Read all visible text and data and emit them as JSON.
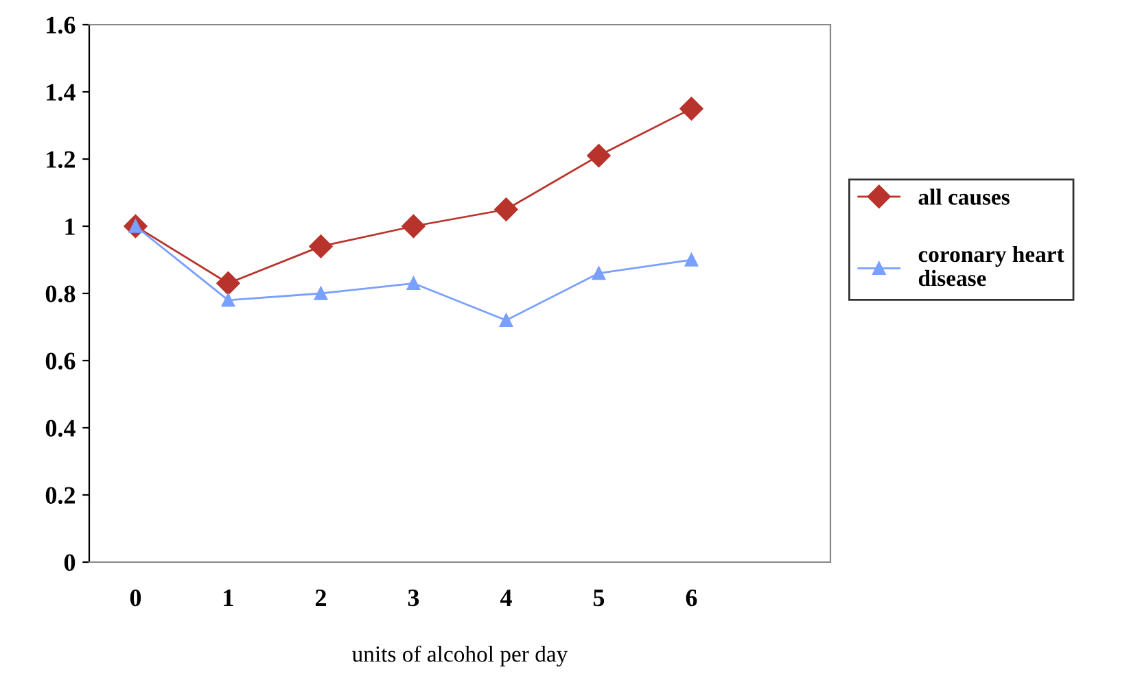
{
  "chart_data": {
    "type": "line",
    "xlabel": "units of alcohol per day",
    "categories": [
      "0",
      "1",
      "2",
      "3",
      "4",
      "5",
      "6",
      null
    ],
    "series": [
      {
        "name": "all causes",
        "color": "#b8332b",
        "marker": "diamond",
        "values": [
          1.0,
          0.83,
          0.94,
          1.0,
          1.05,
          1.21,
          1.35,
          null
        ]
      },
      {
        "name": "coronary heart\ndisease",
        "color": "#7aa0ff",
        "marker": "triangle",
        "values": [
          1.0,
          0.78,
          0.8,
          0.83,
          0.72,
          0.86,
          0.9,
          null
        ]
      }
    ],
    "ylim": [
      0,
      1.6
    ],
    "yticks": [
      0,
      0.2,
      0.4,
      0.6,
      0.8,
      1,
      1.2,
      1.4,
      1.6
    ],
    "grid": false,
    "legend": "right"
  }
}
